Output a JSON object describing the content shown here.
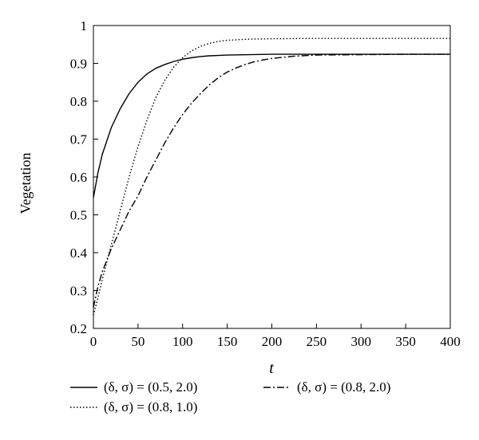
{
  "chart_data": {
    "type": "line",
    "xlabel": "t",
    "ylabel": "Vegetation",
    "xlim": [
      0,
      400
    ],
    "ylim": [
      0.2,
      1.0
    ],
    "x_ticks": [
      "0",
      "50",
      "100",
      "150",
      "200",
      "250",
      "300",
      "350",
      "400"
    ],
    "y_ticks": [
      "0.2",
      "0.3",
      "0.4",
      "0.5",
      "0.6",
      "0.7",
      "0.8",
      "0.9",
      "1"
    ],
    "grid": false,
    "legend_position": "bottom",
    "series": [
      {
        "name": "(δ, σ) = (0.5, 2.0)",
        "style": "solid",
        "x": [
          0,
          5,
          10,
          20,
          30,
          40,
          50,
          60,
          70,
          80,
          90,
          100,
          110,
          120,
          130,
          140,
          150,
          175,
          200,
          250,
          300,
          350,
          400
        ],
        "y": [
          0.545,
          0.61,
          0.66,
          0.73,
          0.78,
          0.82,
          0.85,
          0.872,
          0.887,
          0.897,
          0.905,
          0.911,
          0.915,
          0.918,
          0.92,
          0.921,
          0.922,
          0.923,
          0.924,
          0.924,
          0.924,
          0.924,
          0.924
        ]
      },
      {
        "name": "(δ, σ) = (0.8, 2.0)",
        "style": "dashdot",
        "x": [
          0,
          5,
          10,
          20,
          30,
          40,
          50,
          60,
          70,
          80,
          90,
          100,
          110,
          120,
          130,
          140,
          150,
          160,
          170,
          180,
          190,
          200,
          225,
          250,
          300,
          350,
          400
        ],
        "y": [
          0.255,
          0.31,
          0.35,
          0.41,
          0.46,
          0.51,
          0.55,
          0.6,
          0.645,
          0.69,
          0.73,
          0.765,
          0.795,
          0.82,
          0.843,
          0.862,
          0.877,
          0.888,
          0.897,
          0.904,
          0.909,
          0.913,
          0.919,
          0.922,
          0.923,
          0.924,
          0.924
        ]
      },
      {
        "name": "(δ, σ) = (0.8, 1.0)",
        "style": "dotted",
        "x": [
          0,
          5,
          10,
          20,
          30,
          40,
          50,
          60,
          70,
          80,
          90,
          100,
          110,
          120,
          130,
          140,
          150,
          175,
          200,
          250,
          300,
          350,
          400
        ],
        "y": [
          0.235,
          0.28,
          0.33,
          0.42,
          0.51,
          0.6,
          0.68,
          0.75,
          0.81,
          0.855,
          0.89,
          0.915,
          0.933,
          0.945,
          0.953,
          0.958,
          0.961,
          0.964,
          0.965,
          0.966,
          0.966,
          0.966,
          0.966
        ]
      }
    ]
  }
}
